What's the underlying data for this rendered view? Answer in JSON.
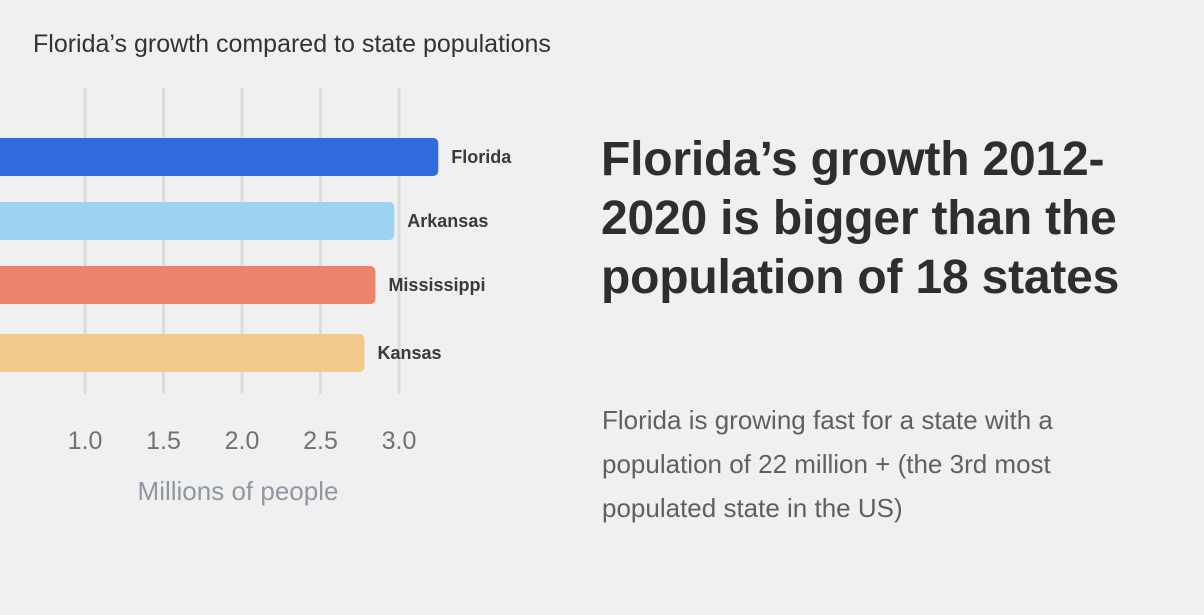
{
  "chart_data": {
    "type": "bar",
    "orientation": "horizontal",
    "title": "Florida’s growth compared to state populations",
    "xlabel": "Millions of people",
    "categories": [
      "Florida",
      "Arkansas",
      "Mississippi",
      "Kansas"
    ],
    "values": [
      3.25,
      2.97,
      2.85,
      2.78
    ],
    "colors": [
      "#2f6bdc",
      "#9bd3f0",
      "#ec846c",
      "#f2cb8c"
    ],
    "x_ticks": [
      1.0,
      1.5,
      2.0,
      2.5,
      3.0
    ],
    "x_tick_labels": [
      "1.0",
      "1.5",
      "2.0",
      "2.5",
      "3.0"
    ],
    "grid": true
  },
  "headline": "Florida’s growth 2012-2020 is bigger than the population of 18 states",
  "body": "Florida is growing fast for a state with a population of 22 million + (the 3rd most populated state in the US)"
}
